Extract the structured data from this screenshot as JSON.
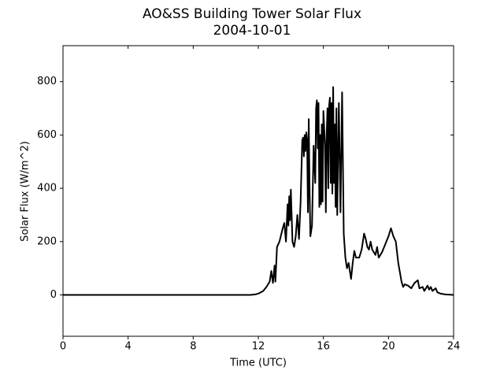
{
  "chart_data": {
    "type": "line",
    "title": "AO&SS Building Tower Solar Flux",
    "subtitle": "2004-10-01",
    "x_label": "Time (UTC)",
    "y_label": "Solar Flux (W/m^2)",
    "color": "#000000",
    "xlim": [
      0,
      24
    ],
    "xticks": [
      0,
      4,
      8,
      12,
      16,
      20,
      24
    ],
    "ylim": [
      -155,
      935
    ],
    "yticks": [
      0,
      200,
      400,
      600,
      800
    ],
    "x": [
      0,
      11.5,
      11.8,
      12.0,
      12.3,
      12.5,
      12.7,
      12.8,
      12.9,
      13.0,
      13.05,
      13.15,
      13.3,
      13.5,
      13.6,
      13.7,
      13.8,
      13.85,
      13.9,
      13.95,
      14.0,
      14.1,
      14.2,
      14.3,
      14.4,
      14.5,
      14.6,
      14.7,
      14.75,
      14.8,
      14.85,
      14.9,
      14.95,
      15.0,
      15.05,
      15.1,
      15.15,
      15.2,
      15.3,
      15.4,
      15.5,
      15.55,
      15.6,
      15.65,
      15.7,
      15.75,
      15.8,
      15.85,
      15.9,
      15.95,
      16.0,
      16.1,
      16.15,
      16.2,
      16.25,
      16.3,
      16.35,
      16.4,
      16.45,
      16.5,
      16.55,
      16.6,
      16.65,
      16.7,
      16.75,
      16.8,
      16.85,
      16.95,
      17.05,
      17.15,
      17.25,
      17.35,
      17.45,
      17.55,
      17.7,
      17.8,
      17.9,
      18.0,
      18.2,
      18.35,
      18.5,
      18.6,
      18.7,
      18.8,
      18.9,
      19.0,
      19.2,
      19.3,
      19.4,
      19.6,
      19.8,
      20.0,
      20.15,
      20.3,
      20.45,
      20.6,
      20.8,
      20.9,
      21.0,
      21.2,
      21.4,
      21.6,
      21.8,
      21.9,
      22.1,
      22.2,
      22.4,
      22.5,
      22.6,
      22.7,
      22.9,
      23.0,
      23.2,
      23.5,
      24
    ],
    "values": [
      0,
      0,
      2,
      5,
      15,
      30,
      50,
      90,
      45,
      110,
      50,
      180,
      200,
      250,
      270,
      200,
      340,
      260,
      370,
      280,
      395,
      200,
      180,
      220,
      300,
      210,
      350,
      580,
      590,
      520,
      600,
      540,
      610,
      580,
      310,
      660,
      400,
      220,
      260,
      560,
      420,
      700,
      730,
      550,
      720,
      330,
      600,
      340,
      640,
      350,
      690,
      560,
      310,
      600,
      700,
      400,
      710,
      740,
      420,
      720,
      380,
      780,
      420,
      640,
      330,
      700,
      300,
      720,
      310,
      760,
      230,
      140,
      100,
      120,
      60,
      120,
      165,
      140,
      140,
      170,
      230,
      210,
      180,
      170,
      200,
      170,
      150,
      180,
      140,
      160,
      190,
      220,
      250,
      220,
      200,
      120,
      50,
      30,
      40,
      35,
      25,
      45,
      55,
      25,
      30,
      15,
      35,
      20,
      30,
      15,
      25,
      10,
      5,
      2,
      0
    ]
  }
}
